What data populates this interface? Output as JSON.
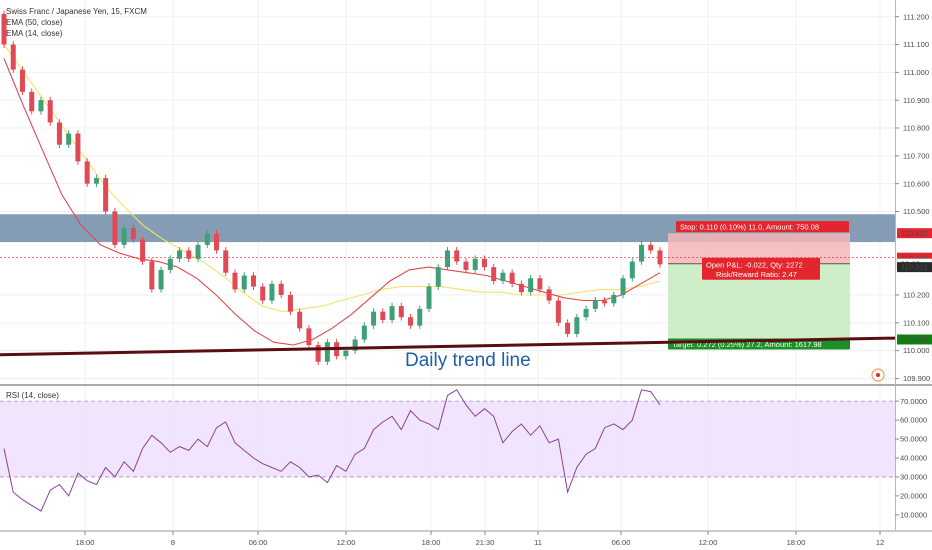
{
  "chart_data": {
    "type": "candlestick",
    "title": "Swiss Franc / Japanese Yen, 15, FXCM",
    "legend": [
      "EMA (50, close)",
      "EMA (14, close)"
    ],
    "annotation": "Daily trend line",
    "price_axis": {
      "ylim": [
        109.88,
        111.26
      ],
      "ticks": [
        111.2,
        111.1,
        111.0,
        110.9,
        110.8,
        110.7,
        110.6,
        110.5,
        110.2,
        110.1,
        110.0,
        109.9
      ],
      "tick_labels": [
        "111.200",
        "111.100",
        "111.000",
        "110.900",
        "110.800",
        "110.700",
        "110.600",
        "110.500",
        "110.200",
        "110.100",
        "110.000",
        "109.900"
      ]
    },
    "time_axis": {
      "labels": [
        "18:00",
        "8",
        "06:00",
        "12:00",
        "18:00",
        "21:30",
        "11",
        "06:00",
        "12:00",
        "18:00",
        "12"
      ]
    },
    "price_tags": [
      {
        "label": "110.422",
        "value": 110.422,
        "color": "#e3262e"
      },
      {
        "label": "110.334",
        "value": 110.334,
        "color": "#e3262e"
      },
      {
        "label": "03:28",
        "value": 110.312,
        "color": "#ffffff"
      },
      {
        "label": "110.312",
        "value": 110.3,
        "color": "#2b2b2b"
      },
      {
        "label": "110.040",
        "value": 110.04,
        "color": "#108010"
      }
    ],
    "position": {
      "entry": 110.312,
      "stop": 110.422,
      "target": 110.04,
      "stop_label": "Stop: 0.110 (0.10%) 11.0, Amount: 750.08",
      "target_label": "Target: 0.272 (0.25%) 27.2, Amount: 1617.98",
      "pnl_label": "Open P&L: -0.022, Qty: 2272",
      "rr_label": "Risk/Reward Ratio: 2.47"
    },
    "resistance_zone": [
      110.39,
      110.49
    ],
    "candles": [
      [
        111.21,
        111.1
      ],
      [
        111.1,
        111.01
      ],
      [
        111.01,
        110.93
      ],
      [
        110.93,
        110.86
      ],
      [
        110.86,
        110.9
      ],
      [
        110.9,
        110.82
      ],
      [
        110.82,
        110.74
      ],
      [
        110.74,
        110.78
      ],
      [
        110.78,
        110.68
      ],
      [
        110.68,
        110.6
      ],
      [
        110.6,
        110.62
      ],
      [
        110.62,
        110.5
      ],
      [
        110.5,
        110.38
      ],
      [
        110.38,
        110.44
      ],
      [
        110.44,
        110.4
      ],
      [
        110.4,
        110.32
      ],
      [
        110.32,
        110.22
      ],
      [
        110.22,
        110.29
      ],
      [
        110.29,
        110.33
      ],
      [
        110.33,
        110.36
      ],
      [
        110.36,
        110.33
      ],
      [
        110.33,
        110.38
      ],
      [
        110.38,
        110.42
      ],
      [
        110.42,
        110.36
      ],
      [
        110.36,
        110.28
      ],
      [
        110.28,
        110.22
      ],
      [
        110.22,
        110.27
      ],
      [
        110.27,
        110.23
      ],
      [
        110.23,
        110.18
      ],
      [
        110.18,
        110.24
      ],
      [
        110.24,
        110.2
      ],
      [
        110.2,
        110.14
      ],
      [
        110.14,
        110.08
      ],
      [
        110.08,
        110.02
      ],
      [
        110.02,
        109.96
      ],
      [
        109.96,
        110.03
      ],
      [
        110.03,
        109.98
      ],
      [
        109.98,
        110.0
      ],
      [
        110.0,
        110.04
      ],
      [
        110.04,
        110.09
      ],
      [
        110.09,
        110.14
      ],
      [
        110.14,
        110.11
      ],
      [
        110.11,
        110.16
      ],
      [
        110.16,
        110.12
      ],
      [
        110.12,
        110.09
      ],
      [
        110.09,
        110.15
      ],
      [
        110.15,
        110.23
      ],
      [
        110.23,
        110.3
      ],
      [
        110.3,
        110.36
      ],
      [
        110.36,
        110.32
      ],
      [
        110.32,
        110.29
      ],
      [
        110.29,
        110.33
      ],
      [
        110.33,
        110.3
      ],
      [
        110.3,
        110.25
      ],
      [
        110.25,
        110.28
      ],
      [
        110.28,
        110.24
      ],
      [
        110.24,
        110.21
      ],
      [
        110.21,
        110.26
      ],
      [
        110.26,
        110.22
      ],
      [
        110.22,
        110.18
      ],
      [
        110.18,
        110.1
      ],
      [
        110.1,
        110.06
      ],
      [
        110.06,
        110.12
      ],
      [
        110.12,
        110.15
      ],
      [
        110.15,
        110.18
      ],
      [
        110.18,
        110.17
      ],
      [
        110.17,
        110.2
      ],
      [
        110.2,
        110.26
      ],
      [
        110.26,
        110.32
      ],
      [
        110.32,
        110.38
      ],
      [
        110.38,
        110.36
      ],
      [
        110.36,
        110.31
      ]
    ],
    "ema_50": [
      111.1,
      111.0,
      110.9,
      110.8,
      110.7,
      110.6,
      110.52,
      110.45,
      110.4,
      110.36,
      110.32,
      110.27,
      110.21,
      110.16,
      110.14,
      110.15,
      110.16,
      110.18,
      110.2,
      110.22,
      110.23,
      110.23,
      110.23,
      110.22,
      110.21,
      110.21,
      110.2,
      110.2,
      110.2,
      110.21,
      110.22,
      110.22,
      110.23,
      110.25
    ],
    "ema_14": [
      111.05,
      110.88,
      110.72,
      110.56,
      110.45,
      110.38,
      110.35,
      110.33,
      110.32,
      110.3,
      110.26,
      110.2,
      110.13,
      110.07,
      110.03,
      110.02,
      110.04,
      110.08,
      110.13,
      110.19,
      110.25,
      110.29,
      110.3,
      110.29,
      110.28,
      110.27,
      110.25,
      110.23,
      110.21,
      110.19,
      110.18,
      110.18,
      110.2,
      110.24,
      110.28
    ],
    "trend_line": [
      [
        0,
        109.985
      ],
      [
        1,
        110.045
      ]
    ],
    "rsi": {
      "label": "RSI (14, close)",
      "ylim": [
        2,
        78
      ],
      "ticks": [
        70,
        60,
        50,
        40,
        30,
        20,
        10
      ],
      "tick_labels": [
        "70.0000",
        "60.0000",
        "50.0000",
        "40.0000",
        "30.0000",
        "20.0000",
        "10.0000"
      ],
      "band": [
        30,
        70
      ],
      "values": [
        45,
        22,
        18,
        15,
        12,
        23,
        26,
        20,
        32,
        28,
        26,
        35,
        30,
        38,
        33,
        45,
        52,
        48,
        43,
        46,
        44,
        50,
        46,
        56,
        59,
        48,
        44,
        40,
        37,
        35,
        33,
        38,
        35,
        30,
        31,
        27,
        36,
        33,
        42,
        45,
        55,
        59,
        62,
        55,
        65,
        60,
        58,
        55,
        73,
        76,
        68,
        62,
        66,
        62,
        48,
        54,
        58,
        52,
        57,
        48,
        50,
        22,
        35,
        42,
        45,
        56,
        58,
        55,
        60,
        76,
        75,
        68
      ]
    }
  }
}
